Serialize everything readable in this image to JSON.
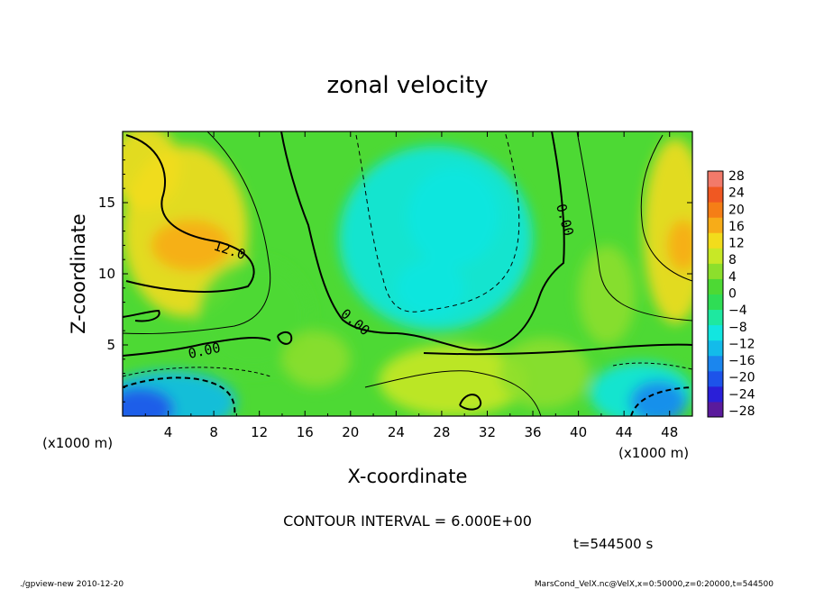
{
  "chart_data": {
    "type": "heatmap",
    "title": "zonal velocity",
    "xlabel": "X-coordinate",
    "ylabel": "Z-coordinate",
    "x_unit_label": "(x1000 m)",
    "y_unit_label": "(x1000 m)",
    "xlim": [
      0,
      50
    ],
    "ylim": [
      0,
      20
    ],
    "x_ticks": [
      "4",
      "8",
      "12",
      "16",
      "20",
      "24",
      "28",
      "32",
      "36",
      "40",
      "44",
      "48"
    ],
    "y_ticks": [
      "5",
      "10",
      "15"
    ],
    "colorbar": {
      "labels": [
        "28",
        "24",
        "20",
        "16",
        "12",
        "8",
        "4",
        "0",
        "−4",
        "−8",
        "−12",
        "−16",
        "−20",
        "−24",
        "−28"
      ],
      "levels": [
        -32,
        -28,
        -24,
        -20,
        -16,
        -12,
        -8,
        -4,
        0,
        4,
        8,
        12,
        16,
        20,
        24,
        28,
        32
      ],
      "colors": [
        "#5a1a9c",
        "#2a1fd8",
        "#1d53ea",
        "#1b86ee",
        "#13bbea",
        "#12e6e0",
        "#1ee8a0",
        "#2fdd55",
        "#4dd934",
        "#8cdf2c",
        "#c8e826",
        "#f2dc1c",
        "#f7ac18",
        "#f57e16",
        "#f05822",
        "#f27a6a"
      ]
    },
    "contour_labels": [
      "12.0",
      "0.00",
      "0.00",
      "0.00"
    ],
    "field_blobs": [
      {
        "x": 5.5,
        "z": 13.0,
        "rx": 5.5,
        "rz": 6.0,
        "value": 14
      },
      {
        "x": 2.0,
        "z": 17.5,
        "rx": 3.0,
        "rz": 3.0,
        "value": 12
      },
      {
        "x": 6.0,
        "z": 12.0,
        "rx": 3.5,
        "rz": 1.8,
        "value": 17
      },
      {
        "x": 48.5,
        "z": 13.0,
        "rx": 2.8,
        "rz": 6.5,
        "value": 14
      },
      {
        "x": 49.2,
        "z": 12.0,
        "rx": 1.4,
        "rz": 1.8,
        "value": 17
      },
      {
        "x": 27.5,
        "z": 12.5,
        "rx": 8.5,
        "rz": 6.5,
        "value": -10
      },
      {
        "x": 29.0,
        "z": 14.0,
        "rx": 4.0,
        "rz": 3.5,
        "value": -12
      },
      {
        "x": 27.0,
        "z": 9.0,
        "rx": 3.0,
        "rz": 2.0,
        "value": -12
      },
      {
        "x": 4.0,
        "z": 1.0,
        "rx": 6.0,
        "rz": 2.2,
        "value": -16
      },
      {
        "x": 1.5,
        "z": 0.5,
        "rx": 3.0,
        "rz": 1.5,
        "value": -22
      },
      {
        "x": 45.5,
        "z": 1.6,
        "rx": 4.5,
        "rz": 2.2,
        "value": -12
      },
      {
        "x": 47.0,
        "z": 1.0,
        "rx": 2.5,
        "rz": 1.5,
        "value": -18
      },
      {
        "x": 29.0,
        "z": 2.5,
        "rx": 6.5,
        "rz": 2.5,
        "value": 8
      },
      {
        "x": 37.0,
        "z": 3.0,
        "rx": 4.0,
        "rz": 2.5,
        "value": 7
      },
      {
        "x": 42.5,
        "z": 8.5,
        "rx": 2.5,
        "rz": 3.5,
        "value": 5
      },
      {
        "x": 11.5,
        "z": 7.0,
        "rx": 5.0,
        "rz": 4.0,
        "value": 2
      },
      {
        "x": 17.0,
        "z": 4.0,
        "rx": 3.0,
        "rz": 2.0,
        "value": 4
      }
    ],
    "contour_interval_text": "CONTOUR INTERVAL = 6.000E+00",
    "time_text": "t=544500 s"
  },
  "footer": {
    "left": "./gpview-new  2010-12-20",
    "right": "MarsCond_VelX.nc@VelX,x=0:50000,z=0:20000,t=544500"
  }
}
